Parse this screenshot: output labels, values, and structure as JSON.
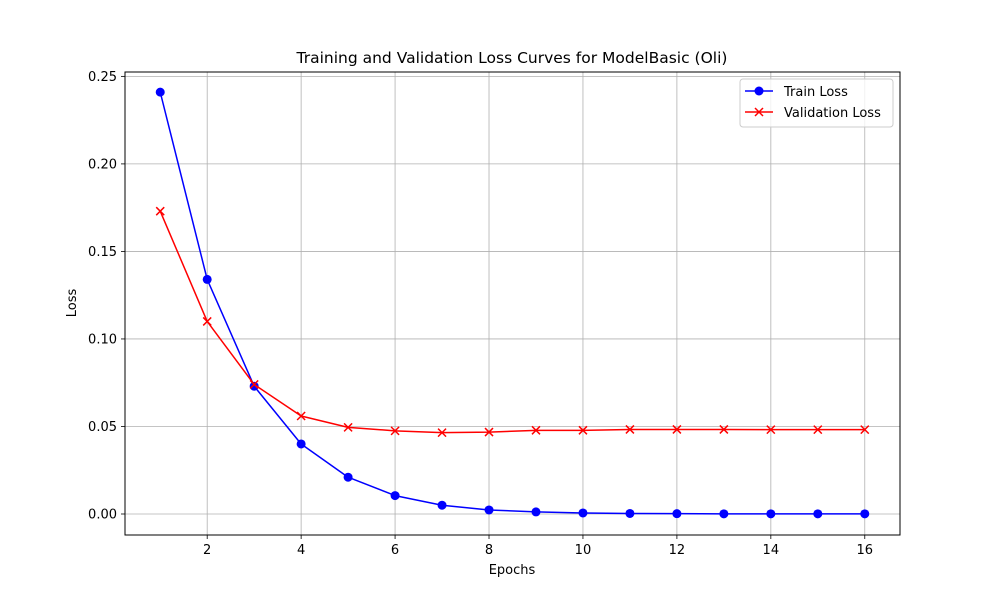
{
  "chart_data": {
    "type": "line",
    "title": "Training and Validation Loss Curves for ModelBasic (Oli)",
    "xlabel": "Epochs",
    "ylabel": "Loss",
    "xlim": [
      0.25,
      16.75
    ],
    "ylim": [
      -0.012,
      0.2525
    ],
    "xticks": [
      2,
      4,
      6,
      8,
      10,
      12,
      14,
      16
    ],
    "xtick_labels": [
      "2",
      "4",
      "6",
      "8",
      "10",
      "12",
      "14",
      "16"
    ],
    "yticks": [
      0.0,
      0.05,
      0.1,
      0.15,
      0.2,
      0.25
    ],
    "ytick_labels": [
      "0.00",
      "0.05",
      "0.10",
      "0.15",
      "0.20",
      "0.25"
    ],
    "grid": true,
    "legend_position": "top-right",
    "x": [
      1,
      2,
      3,
      4,
      5,
      6,
      7,
      8,
      9,
      10,
      11,
      12,
      13,
      14,
      15,
      16
    ],
    "series": [
      {
        "name": "Train Loss",
        "color": "#0000ff",
        "marker": "circle",
        "values": [
          0.241,
          0.134,
          0.073,
          0.04,
          0.021,
          0.0105,
          0.005,
          0.0023,
          0.0012,
          0.0006,
          0.0003,
          0.0002,
          0.0001,
          0.0001,
          0.0001,
          0.0001
        ]
      },
      {
        "name": "Validation Loss",
        "color": "#ff0000",
        "marker": "x",
        "values": [
          0.173,
          0.11,
          0.074,
          0.056,
          0.0495,
          0.0475,
          0.0465,
          0.0468,
          0.0478,
          0.0478,
          0.0483,
          0.0483,
          0.0483,
          0.0482,
          0.0482,
          0.0482
        ]
      }
    ]
  }
}
